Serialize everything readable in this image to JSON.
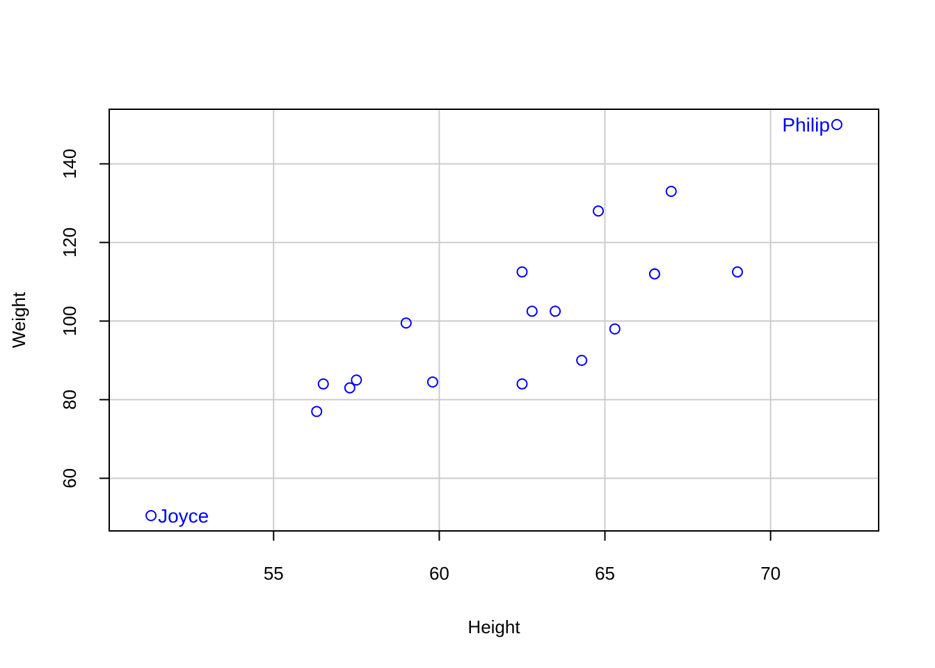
{
  "chart_data": {
    "type": "scatter",
    "title": "",
    "xlabel": "Height",
    "ylabel": "Weight",
    "xlim": [
      50.5,
      72.8
    ],
    "ylim": [
      50.5,
      150.0
    ],
    "xticks": [
      55,
      60,
      65,
      70
    ],
    "yticks": [
      60,
      80,
      100,
      120,
      140
    ],
    "grid": true,
    "point_color": "#0000ff",
    "grid_color": "#cccccc",
    "points": [
      {
        "x": 51.3,
        "y": 50.5,
        "label": "Joyce"
      },
      {
        "x": 56.3,
        "y": 77.0
      },
      {
        "x": 56.5,
        "y": 84.0
      },
      {
        "x": 57.3,
        "y": 83.0
      },
      {
        "x": 57.5,
        "y": 85.0
      },
      {
        "x": 59.0,
        "y": 99.5
      },
      {
        "x": 59.8,
        "y": 84.5
      },
      {
        "x": 62.5,
        "y": 112.5
      },
      {
        "x": 62.5,
        "y": 84.0
      },
      {
        "x": 62.8,
        "y": 102.5
      },
      {
        "x": 63.5,
        "y": 102.5
      },
      {
        "x": 64.3,
        "y": 90.0
      },
      {
        "x": 64.8,
        "y": 128.0
      },
      {
        "x": 65.3,
        "y": 98.0
      },
      {
        "x": 66.5,
        "y": 112.0
      },
      {
        "x": 66.5,
        "y": 112.0
      },
      {
        "x": 67.0,
        "y": 133.0
      },
      {
        "x": 69.0,
        "y": 112.5
      },
      {
        "x": 72.0,
        "y": 150.0,
        "label": "Philip"
      }
    ]
  }
}
